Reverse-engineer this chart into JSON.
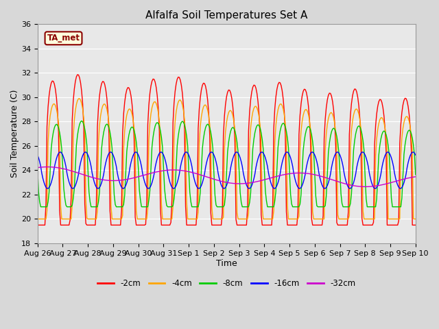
{
  "title": "Alfalfa Soil Temperatures Set A",
  "xlabel": "Time",
  "ylabel": "Soil Temperature (C)",
  "ylim": [
    18,
    36
  ],
  "x_tick_labels": [
    "Aug 26",
    "Aug 27",
    "Aug 28",
    "Aug 29",
    "Aug 30",
    "Aug 31",
    "Sep 1",
    "Sep 2",
    "Sep 3",
    "Sep 4",
    "Sep 5",
    "Sep 6",
    "Sep 7",
    "Sep 8",
    "Sep 9",
    "Sep 10"
  ],
  "annotation_text": "TA_met",
  "annotation_color": "#8B0000",
  "annotation_bg": "#FFFFDD",
  "series_colors": {
    "-2cm": "#FF0000",
    "-4cm": "#FFA500",
    "-8cm": "#00CC00",
    "-16cm": "#0000FF",
    "-32cm": "#CC00CC"
  },
  "fig_bg": "#D8D8D8",
  "plot_bg": "#E8E8E8"
}
